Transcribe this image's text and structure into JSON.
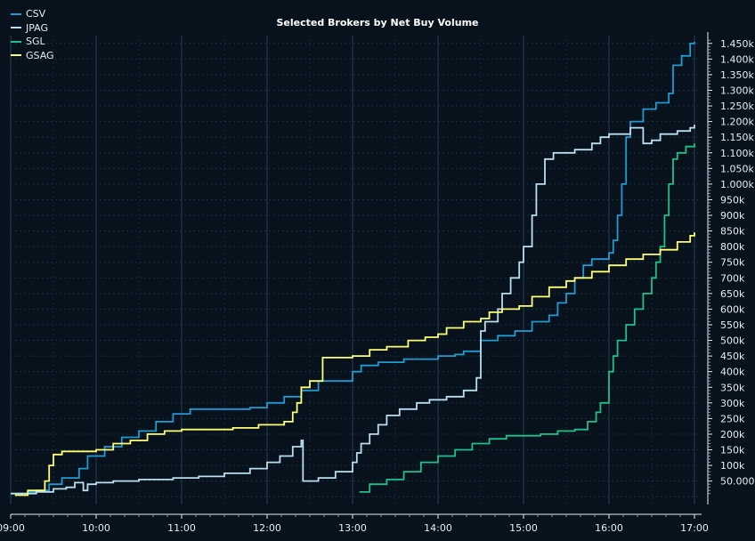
{
  "chart_data": {
    "type": "line",
    "title": "Selected Brokers by Net Buy Volume",
    "xlabel": "",
    "ylabel": "",
    "x_ticks": [
      "09:00",
      "10:00",
      "11:00",
      "12:00",
      "13:00",
      "14:00",
      "15:00",
      "16:00",
      "17:00"
    ],
    "x_range_hours": [
      9,
      17
    ],
    "y_ticks": [
      "50.000",
      "100k",
      "150k",
      "200k",
      "250k",
      "300k",
      "350k",
      "400k",
      "450k",
      "500k",
      "550k",
      "600k",
      "650k",
      "700k",
      "750k",
      "800k",
      "850k",
      "900k",
      "950k",
      "1.000k",
      "1.050k",
      "1.100k",
      "1.150k",
      "1.200k",
      "1.250k",
      "1.300k",
      "1.350k",
      "1.400k",
      "1.450k"
    ],
    "ylim": [
      -25000,
      1475000
    ],
    "grid": true,
    "legend_position": "top-left",
    "series": [
      {
        "name": "CSV",
        "color": "#1f9bd1",
        "points": [
          [
            9.0,
            10000
          ],
          [
            9.2,
            15000
          ],
          [
            9.3,
            20000
          ],
          [
            9.45,
            40000
          ],
          [
            9.6,
            60000
          ],
          [
            9.8,
            90000
          ],
          [
            9.9,
            130000
          ],
          [
            10.1,
            160000
          ],
          [
            10.3,
            190000
          ],
          [
            10.5,
            210000
          ],
          [
            10.7,
            240000
          ],
          [
            10.9,
            265000
          ],
          [
            11.1,
            280000
          ],
          [
            11.5,
            280000
          ],
          [
            11.8,
            285000
          ],
          [
            12.0,
            300000
          ],
          [
            12.2,
            320000
          ],
          [
            12.4,
            340000
          ],
          [
            12.6,
            370000
          ],
          [
            12.9,
            370000
          ],
          [
            13.0,
            400000
          ],
          [
            13.1,
            420000
          ],
          [
            13.3,
            430000
          ],
          [
            13.6,
            440000
          ],
          [
            14.0,
            450000
          ],
          [
            14.2,
            455000
          ],
          [
            14.3,
            465000
          ],
          [
            14.5,
            500000
          ],
          [
            14.7,
            515000
          ],
          [
            14.9,
            530000
          ],
          [
            15.1,
            560000
          ],
          [
            15.3,
            580000
          ],
          [
            15.4,
            620000
          ],
          [
            15.5,
            650000
          ],
          [
            15.6,
            700000
          ],
          [
            15.7,
            740000
          ],
          [
            15.8,
            760000
          ],
          [
            15.9,
            760000
          ],
          [
            16.0,
            780000
          ],
          [
            16.05,
            820000
          ],
          [
            16.1,
            900000
          ],
          [
            16.15,
            1000000
          ],
          [
            16.2,
            1150000
          ],
          [
            16.25,
            1200000
          ],
          [
            16.35,
            1200000
          ],
          [
            16.4,
            1240000
          ],
          [
            16.55,
            1260000
          ],
          [
            16.7,
            1290000
          ],
          [
            16.75,
            1380000
          ],
          [
            16.85,
            1410000
          ],
          [
            16.95,
            1450000
          ],
          [
            17.0,
            1455000
          ]
        ]
      },
      {
        "name": "JPAG",
        "color": "#b8def0",
        "points": [
          [
            9.0,
            10000
          ],
          [
            9.3,
            15000
          ],
          [
            9.5,
            25000
          ],
          [
            9.65,
            30000
          ],
          [
            9.75,
            45000
          ],
          [
            9.85,
            20000
          ],
          [
            9.9,
            40000
          ],
          [
            10.0,
            45000
          ],
          [
            10.2,
            50000
          ],
          [
            10.5,
            55000
          ],
          [
            10.9,
            60000
          ],
          [
            11.2,
            65000
          ],
          [
            11.5,
            75000
          ],
          [
            11.8,
            90000
          ],
          [
            12.0,
            110000
          ],
          [
            12.15,
            130000
          ],
          [
            12.3,
            160000
          ],
          [
            12.4,
            180000
          ],
          [
            12.42,
            50000
          ],
          [
            12.6,
            60000
          ],
          [
            12.8,
            80000
          ],
          [
            13.0,
            110000
          ],
          [
            13.05,
            140000
          ],
          [
            13.1,
            170000
          ],
          [
            13.2,
            200000
          ],
          [
            13.3,
            230000
          ],
          [
            13.4,
            260000
          ],
          [
            13.55,
            280000
          ],
          [
            13.75,
            300000
          ],
          [
            13.9,
            310000
          ],
          [
            14.1,
            320000
          ],
          [
            14.3,
            340000
          ],
          [
            14.45,
            380000
          ],
          [
            14.5,
            530000
          ],
          [
            14.55,
            560000
          ],
          [
            14.7,
            600000
          ],
          [
            14.75,
            650000
          ],
          [
            14.85,
            700000
          ],
          [
            14.95,
            750000
          ],
          [
            15.0,
            800000
          ],
          [
            15.1,
            900000
          ],
          [
            15.15,
            1000000
          ],
          [
            15.25,
            1080000
          ],
          [
            15.35,
            1100000
          ],
          [
            15.6,
            1110000
          ],
          [
            15.8,
            1130000
          ],
          [
            15.9,
            1150000
          ],
          [
            16.0,
            1160000
          ],
          [
            16.15,
            1160000
          ],
          [
            16.25,
            1180000
          ],
          [
            16.4,
            1130000
          ],
          [
            16.5,
            1140000
          ],
          [
            16.6,
            1160000
          ],
          [
            16.8,
            1170000
          ],
          [
            16.95,
            1180000
          ],
          [
            17.0,
            1190000
          ]
        ]
      },
      {
        "name": "SGL",
        "color": "#1fbf8a",
        "points": [
          [
            13.08,
            15000
          ],
          [
            13.2,
            40000
          ],
          [
            13.4,
            55000
          ],
          [
            13.6,
            80000
          ],
          [
            13.8,
            110000
          ],
          [
            14.0,
            130000
          ],
          [
            14.2,
            150000
          ],
          [
            14.4,
            170000
          ],
          [
            14.6,
            185000
          ],
          [
            14.8,
            195000
          ],
          [
            15.0,
            195000
          ],
          [
            15.2,
            200000
          ],
          [
            15.4,
            210000
          ],
          [
            15.6,
            215000
          ],
          [
            15.75,
            240000
          ],
          [
            15.85,
            270000
          ],
          [
            15.9,
            300000
          ],
          [
            16.0,
            400000
          ],
          [
            16.05,
            450000
          ],
          [
            16.1,
            500000
          ],
          [
            16.2,
            550000
          ],
          [
            16.3,
            600000
          ],
          [
            16.4,
            650000
          ],
          [
            16.5,
            700000
          ],
          [
            16.55,
            750000
          ],
          [
            16.6,
            800000
          ],
          [
            16.65,
            900000
          ],
          [
            16.7,
            1000000
          ],
          [
            16.75,
            1080000
          ],
          [
            16.8,
            1100000
          ],
          [
            16.9,
            1120000
          ],
          [
            17.0,
            1130000
          ]
        ]
      },
      {
        "name": "GSAG",
        "color": "#ffff75",
        "points": [
          [
            9.05,
            5000
          ],
          [
            9.2,
            20000
          ],
          [
            9.4,
            50000
          ],
          [
            9.45,
            100000
          ],
          [
            9.5,
            135000
          ],
          [
            9.6,
            145000
          ],
          [
            9.8,
            145000
          ],
          [
            10.0,
            150000
          ],
          [
            10.2,
            170000
          ],
          [
            10.4,
            180000
          ],
          [
            10.6,
            200000
          ],
          [
            10.8,
            210000
          ],
          [
            11.0,
            215000
          ],
          [
            11.3,
            215000
          ],
          [
            11.6,
            220000
          ],
          [
            11.9,
            230000
          ],
          [
            12.2,
            240000
          ],
          [
            12.3,
            270000
          ],
          [
            12.35,
            300000
          ],
          [
            12.4,
            350000
          ],
          [
            12.5,
            370000
          ],
          [
            12.65,
            445000
          ],
          [
            13.0,
            450000
          ],
          [
            13.2,
            470000
          ],
          [
            13.4,
            480000
          ],
          [
            13.65,
            500000
          ],
          [
            13.85,
            510000
          ],
          [
            14.0,
            520000
          ],
          [
            14.1,
            540000
          ],
          [
            14.3,
            560000
          ],
          [
            14.5,
            570000
          ],
          [
            14.6,
            590000
          ],
          [
            14.75,
            600000
          ],
          [
            14.95,
            610000
          ],
          [
            15.1,
            640000
          ],
          [
            15.3,
            670000
          ],
          [
            15.5,
            690000
          ],
          [
            15.6,
            700000
          ],
          [
            15.8,
            720000
          ],
          [
            16.0,
            740000
          ],
          [
            16.2,
            760000
          ],
          [
            16.4,
            775000
          ],
          [
            16.6,
            790000
          ],
          [
            16.8,
            815000
          ],
          [
            16.95,
            835000
          ],
          [
            17.0,
            845000
          ]
        ]
      }
    ]
  }
}
